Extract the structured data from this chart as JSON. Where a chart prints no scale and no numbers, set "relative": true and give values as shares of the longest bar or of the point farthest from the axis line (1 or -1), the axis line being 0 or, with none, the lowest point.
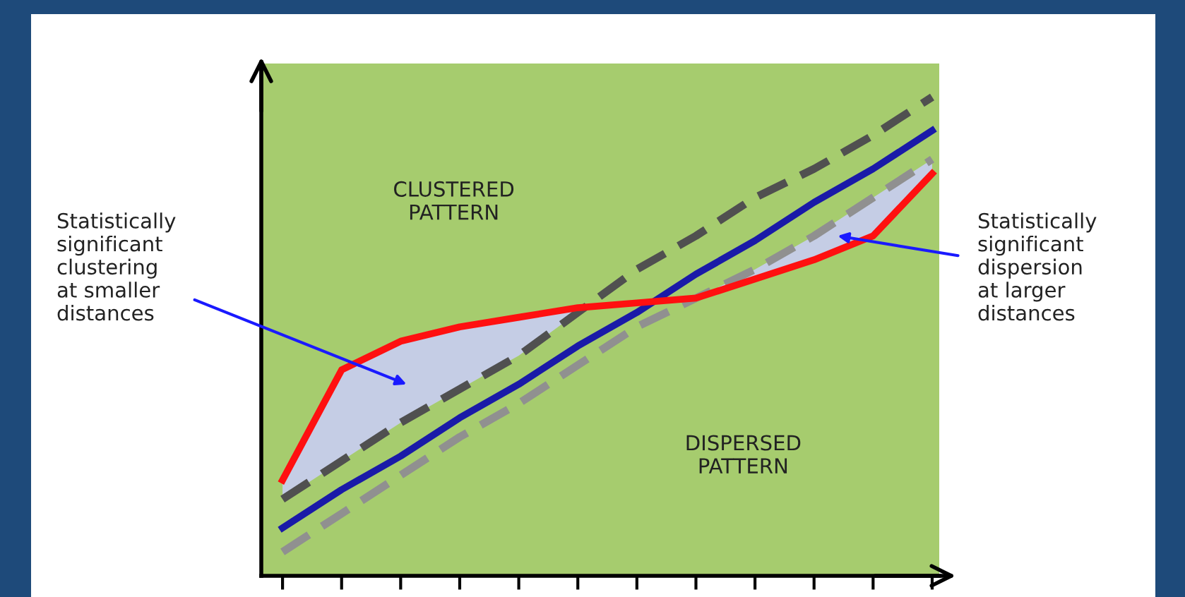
{
  "chart_data": {
    "type": "line",
    "relative": true,
    "grid": false,
    "legend": false,
    "categories": [
      null,
      null,
      null,
      null,
      null,
      null,
      null,
      null,
      null,
      null,
      null,
      null
    ],
    "series": [
      {
        "color": "#909090",
        "line_style": "dashed",
        "values": [
          0.05,
          0.13,
          0.21,
          0.29,
          0.36,
          0.44,
          0.52,
          0.58,
          0.64,
          0.71,
          0.79,
          0.87
        ]
      },
      {
        "color": "#505050",
        "line_style": "dashed",
        "values": [
          0.16,
          0.24,
          0.32,
          0.39,
          0.46,
          0.55,
          0.64,
          0.71,
          0.79,
          0.85,
          0.92,
          1
        ]
      },
      {
        "color": "#1a1aa8",
        "line_style": "solid",
        "values": [
          0.1,
          0.18,
          0.25,
          0.33,
          0.4,
          0.48,
          0.55,
          0.63,
          0.7,
          0.78,
          0.85,
          0.93
        ]
      },
      {
        "color": "#ff1010",
        "line_style": "solid",
        "values": [
          0.2,
          0.43,
          0.49,
          0.52,
          0.54,
          0.56,
          0.57,
          0.58,
          0.62,
          0.66,
          0.71,
          0.84
        ],
        "lower": [
          0.16,
          0.24,
          0.32,
          0.39,
          0.46,
          0.55,
          null,
          0.58,
          0.62,
          0.66,
          0.71,
          0.84
        ],
        "upper": [
          0.2,
          0.43,
          0.49,
          0.52,
          0.54,
          0.56,
          null,
          0.58,
          0.64,
          0.71,
          0.79,
          0.87
        ]
      }
    ],
    "annotations": [
      "CLUSTERED\nPATTERN",
      "DISPERSED\nPATTERN",
      "Statistically\nsignificant\nclustering\nat smaller\ndistances",
      "Statistically\nsignificant\ndispersion\nat larger\ndistances"
    ]
  }
}
